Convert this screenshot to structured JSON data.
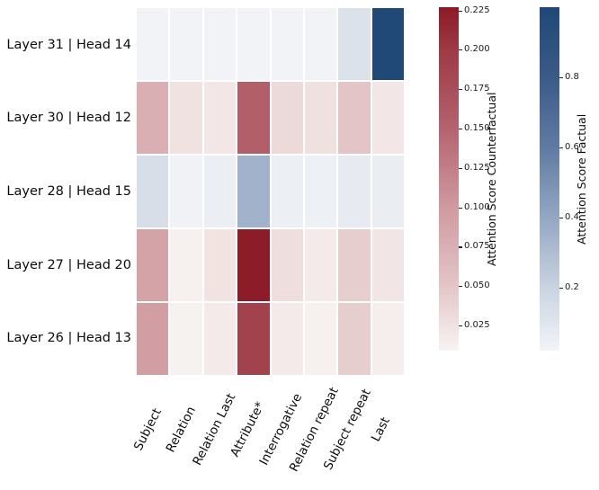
{
  "chart_data": {
    "type": "heatmap",
    "title": "",
    "columns": [
      "Subject",
      "Relation",
      "Relation Last",
      "Attribute*",
      "Interrogative",
      "Relation repeat",
      "Subject repeat",
      "Last"
    ],
    "rows": [
      {
        "label": "Layer 31 | Head 14",
        "scale": "factual",
        "values": [
          0.025,
          0.025,
          0.025,
          0.025,
          0.025,
          0.025,
          0.12,
          0.99
        ]
      },
      {
        "label": "Layer 30 | Head 12",
        "scale": "counterfactual",
        "values": [
          0.075,
          0.025,
          0.02,
          0.155,
          0.032,
          0.026,
          0.05,
          0.02
        ]
      },
      {
        "label": "Layer 28 | Head 15",
        "scale": "factual",
        "values": [
          0.14,
          0.03,
          0.05,
          0.35,
          0.045,
          0.04,
          0.07,
          0.055
        ]
      },
      {
        "label": "Layer 27 | Head 20",
        "scale": "counterfactual",
        "values": [
          0.09,
          0.012,
          0.024,
          0.225,
          0.028,
          0.018,
          0.043,
          0.021
        ]
      },
      {
        "label": "Layer 26 | Head 13",
        "scale": "counterfactual",
        "values": [
          0.095,
          0.011,
          0.018,
          0.19,
          0.018,
          0.012,
          0.043,
          0.014
        ]
      }
    ],
    "colorbars": [
      {
        "id": "counterfactual",
        "label": "Attention Score Counterfactual",
        "vmin": 0.009,
        "vmax": 0.227,
        "ticks": [
          {
            "label": "0.225",
            "value": 0.225
          },
          {
            "label": "0.200",
            "value": 0.2
          },
          {
            "label": "0.175",
            "value": 0.175
          },
          {
            "label": "0.150",
            "value": 0.15
          },
          {
            "label": "0.125",
            "value": 0.125
          },
          {
            "label": "0.100",
            "value": 0.1
          },
          {
            "label": "0.075",
            "value": 0.075
          },
          {
            "label": "0.050",
            "value": 0.05
          },
          {
            "label": "0.025",
            "value": 0.025
          }
        ],
        "gradient": [
          [
            0,
            "#f7f4f2"
          ],
          [
            0.188,
            "#e3c5c7"
          ],
          [
            0.417,
            "#cf9aa0"
          ],
          [
            0.647,
            "#b4636e"
          ],
          [
            0.876,
            "#9d3a45"
          ],
          [
            1,
            "#8b1a26"
          ]
        ]
      },
      {
        "id": "factual",
        "label": "Attention Score Factual",
        "vmin": 0.02,
        "vmax": 1.0,
        "ticks": [
          {
            "label": "0.8",
            "value": 0.8
          },
          {
            "label": "0.6",
            "value": 0.6
          },
          {
            "label": "0.4",
            "value": 0.4
          },
          {
            "label": "0.2",
            "value": 0.2
          }
        ],
        "gradient": [
          [
            0,
            "#f2f4f7"
          ],
          [
            0.184,
            "#c9d3e0"
          ],
          [
            0.388,
            "#93a7c2"
          ],
          [
            0.592,
            "#5f7ba1"
          ],
          [
            0.796,
            "#3a5b88"
          ],
          [
            1,
            "#1f4876"
          ]
        ]
      }
    ],
    "layout": {
      "grid": false,
      "x_label_rotation_deg": 63,
      "gap_color": "#ffffff"
    }
  }
}
